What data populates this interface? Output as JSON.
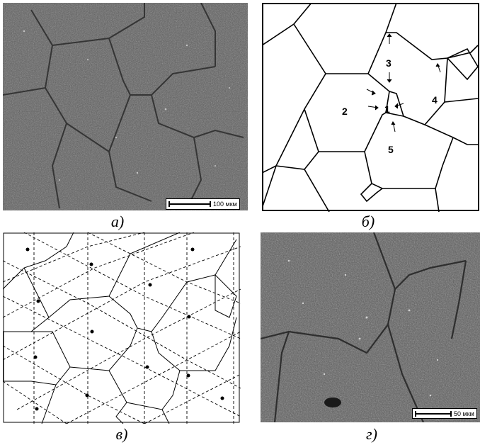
{
  "panels": {
    "a": {
      "caption": "а)",
      "scale_label": "100 мкм"
    },
    "b": {
      "caption": "б)",
      "grain_labels": [
        "1",
        "2",
        "3",
        "4",
        "5"
      ]
    },
    "v": {
      "caption": "в)"
    },
    "g": {
      "caption": "г)",
      "scale_label": "50 мкм"
    }
  },
  "colors": {
    "sem_background": "#5f5f5f",
    "line": "#000000",
    "paper": "#ffffff"
  }
}
